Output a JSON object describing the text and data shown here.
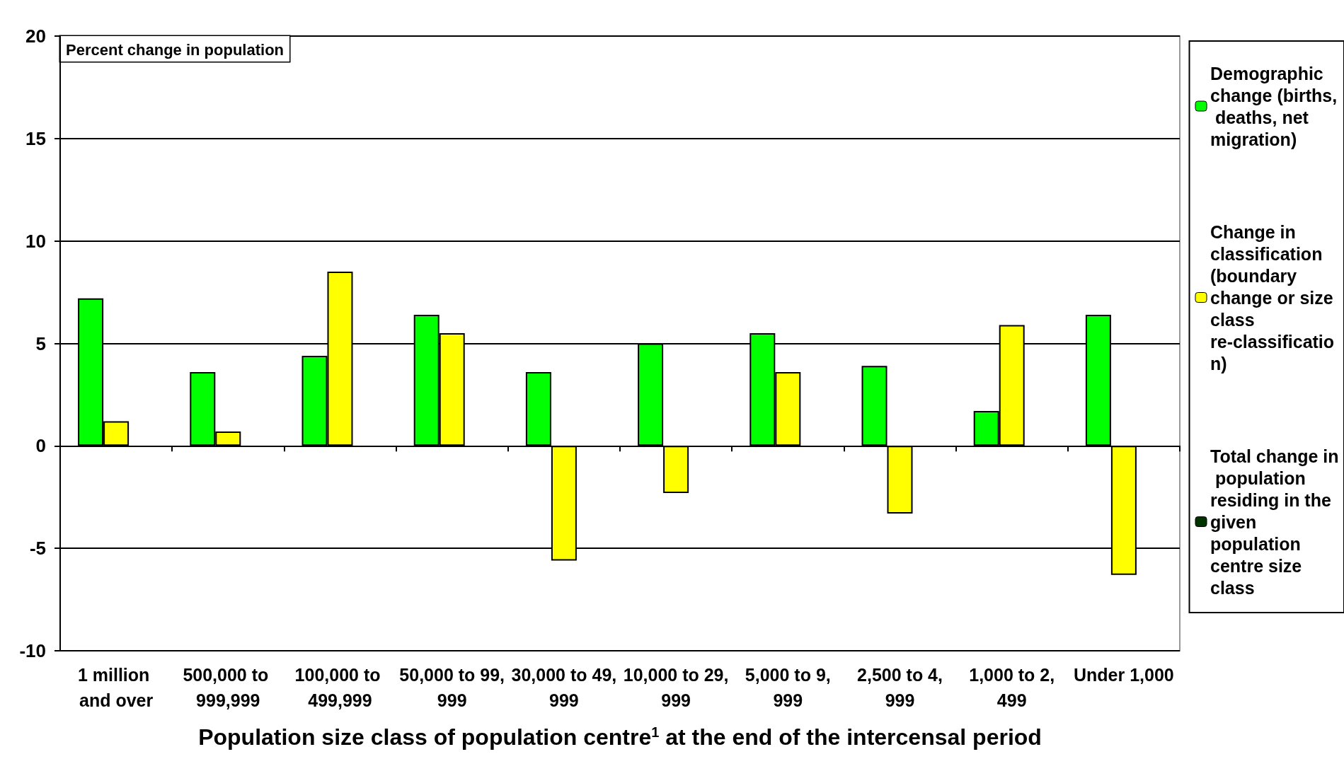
{
  "chart_data": {
    "type": "bar",
    "ylabel": "Percent change in population",
    "xlabel": "Population size class of population centre$^{1}$ at the end of the intercensal period",
    "categories": [
      "1 million and over",
      "500,000 to 999,999",
      "100,000 to 499,999",
      "50,000 to 99,999",
      "30,000 to 49,999",
      "10,000 to 29,999",
      "5,000 to 9,999",
      "2,500 to 4,999",
      "1,000 to 2,499",
      "Under 1,000"
    ],
    "series": [
      {
        "name": "Demographic change (births, deaths, net migration)",
        "color": "#00ff00",
        "values": [
          7.2,
          3.6,
          4.4,
          6.4,
          3.6,
          5.0,
          5.5,
          3.9,
          1.7,
          6.4
        ]
      },
      {
        "name": "Change in classification (boundary change or size class re-classification)",
        "color": "#ffff00",
        "values": [
          1.2,
          0.7,
          8.5,
          5.5,
          -5.6,
          -2.3,
          3.6,
          -3.3,
          5.9,
          -6.3
        ]
      },
      {
        "name": "Total change in population residing in the given population centre size class",
        "color": "#003300",
        "values": [
          null,
          null,
          null,
          null,
          null,
          null,
          null,
          null,
          null,
          null
        ]
      }
    ],
    "ylim": [
      -10,
      20
    ],
    "yticks": [
      -10,
      -5,
      0,
      5,
      10,
      15,
      20
    ],
    "grid": "y",
    "legend": "right"
  }
}
